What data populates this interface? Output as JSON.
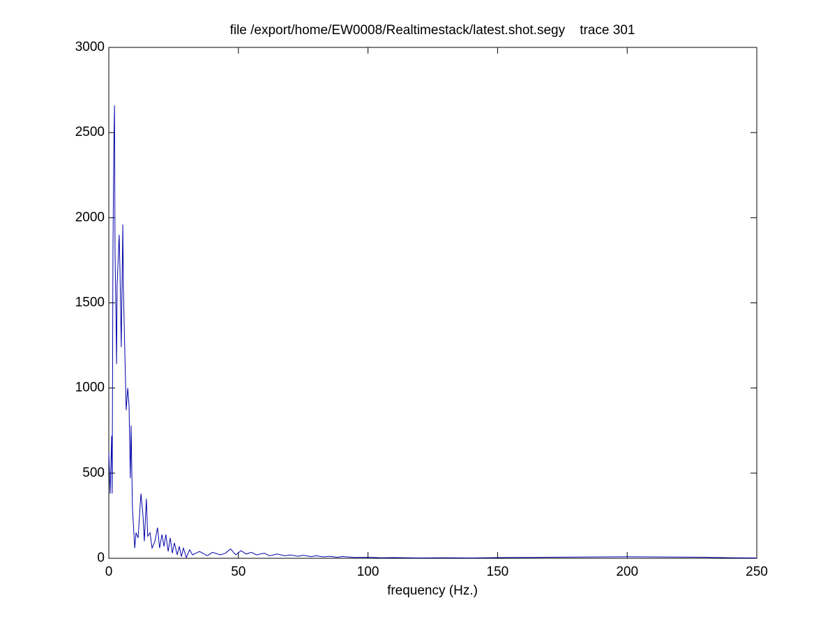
{
  "chart_data": {
    "type": "line",
    "title": "file /export/home/EW0008/Realtimestack/latest.shot.segy    trace 301",
    "x_label": "frequency (Hz.)",
    "xlim": [
      0,
      250
    ],
    "xticks": [
      0,
      50,
      100,
      150,
      200,
      250
    ],
    "ylim": [
      0,
      3000
    ],
    "yticks": [
      0,
      500,
      1000,
      1500,
      2000,
      2500,
      3000
    ],
    "grid": false,
    "series": [
      {
        "color": "#0000a8",
        "x": [
          0,
          0.5,
          1.1,
          1.3,
          1.6,
          1.9,
          2.2,
          2.4,
          2.7,
          3.0,
          3.2,
          4.0,
          4.3,
          4.8,
          5.4,
          5.6,
          6.2,
          6.7,
          7.3,
          7.8,
          8.3,
          8.6,
          9.1,
          10,
          10.5,
          11.3,
          12.4,
          13.2,
          13.7,
          14.5,
          15,
          15.9,
          16.7,
          17.8,
          18.8,
          19.6,
          20.5,
          21.3,
          22,
          22.9,
          23.7,
          24.5,
          25.3,
          26.4,
          27.2,
          28,
          28.8,
          29.9,
          31.2,
          32.3,
          35,
          38,
          40,
          43,
          45,
          47,
          49,
          51,
          53,
          55,
          57,
          60,
          62,
          65,
          68,
          70,
          73,
          75,
          78,
          80,
          83,
          85,
          88,
          90,
          95,
          100,
          105,
          110,
          120,
          130,
          140,
          150,
          160,
          170,
          180,
          190,
          200,
          210,
          220,
          230,
          233,
          240,
          250
        ],
        "values": [
          620,
          380,
          720,
          380,
          1800,
          2380,
          2660,
          1800,
          1500,
          1140,
          1600,
          1900,
          1700,
          1240,
          1960,
          1600,
          1200,
          870,
          1000,
          900,
          470,
          780,
          300,
          60,
          150,
          120,
          380,
          250,
          100,
          350,
          130,
          150,
          60,
          100,
          180,
          60,
          140,
          70,
          140,
          40,
          120,
          30,
          90,
          20,
          70,
          10,
          60,
          5,
          50,
          20,
          40,
          15,
          35,
          20,
          30,
          55,
          20,
          45,
          25,
          35,
          20,
          30,
          15,
          25,
          15,
          20,
          12,
          18,
          10,
          15,
          8,
          12,
          6,
          10,
          5,
          6,
          3,
          4,
          2,
          3,
          2,
          4,
          5,
          6,
          7,
          8,
          9,
          8,
          7,
          6,
          5,
          3,
          2
        ]
      }
    ]
  }
}
